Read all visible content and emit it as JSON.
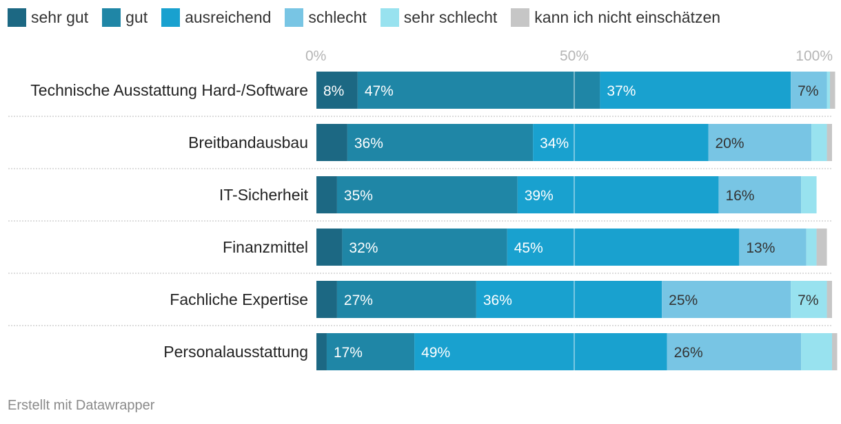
{
  "chart_data": {
    "type": "bar",
    "orientation": "horizontal-stacked-100",
    "categories": [
      "Technische Ausstattung Hard-/Software",
      "Breitbandausbau",
      "IT-Sicherheit",
      "Finanzmittel",
      "Fachliche Expertise",
      "Personalausstattung"
    ],
    "series": [
      {
        "name": "sehr gut",
        "color": "#1c6883",
        "values": [
          8,
          6,
          4,
          5,
          4,
          2
        ]
      },
      {
        "name": "gut",
        "color": "#1f86a6",
        "values": [
          47,
          36,
          35,
          32,
          27,
          17
        ]
      },
      {
        "name": "ausreichend",
        "color": "#19a1cf",
        "values": [
          37,
          34,
          39,
          45,
          36,
          49
        ]
      },
      {
        "name": "schlecht",
        "color": "#78c5e4",
        "values": [
          7,
          20,
          16,
          13,
          25,
          26
        ]
      },
      {
        "name": "sehr schlecht",
        "color": "#98e2ef",
        "values": [
          0.6,
          3,
          3,
          2,
          7,
          6
        ]
      },
      {
        "name": "kann ich nicht einschätzen",
        "color": "#c6c6c6",
        "values": [
          1,
          1,
          0,
          2,
          1,
          1
        ]
      }
    ],
    "data_labels": [
      [
        "8%",
        "47%",
        "37%",
        "7%",
        "",
        ""
      ],
      [
        "",
        "36%",
        "34%",
        "20%",
        "",
        ""
      ],
      [
        "",
        "35%",
        "39%",
        "16%",
        "",
        ""
      ],
      [
        "",
        "32%",
        "45%",
        "13%",
        "",
        ""
      ],
      [
        "",
        "27%",
        "36%",
        "25%",
        "7%",
        ""
      ],
      [
        "",
        "17%",
        "49%",
        "26%",
        "",
        ""
      ]
    ],
    "x_ticks": [
      0,
      50,
      100
    ],
    "x_tick_labels": [
      "0%",
      "50%",
      "100%"
    ],
    "xlim": [
      0,
      100
    ]
  },
  "footer": "Erstellt mit Datawrapper"
}
